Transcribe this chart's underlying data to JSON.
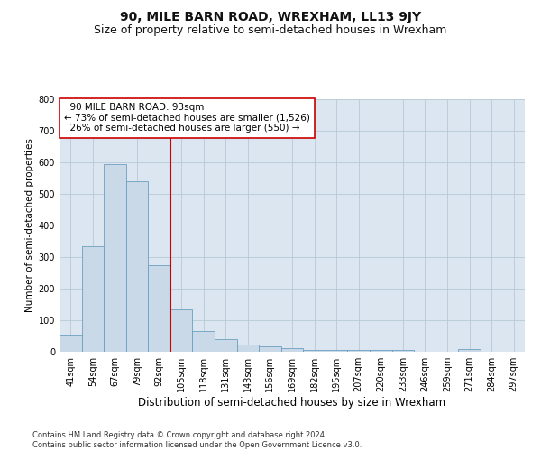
{
  "title": "90, MILE BARN ROAD, WREXHAM, LL13 9JY",
  "subtitle": "Size of property relative to semi-detached houses in Wrexham",
  "xlabel": "Distribution of semi-detached houses by size in Wrexham",
  "ylabel": "Number of semi-detached properties",
  "categories": [
    "41sqm",
    "54sqm",
    "67sqm",
    "79sqm",
    "92sqm",
    "105sqm",
    "118sqm",
    "131sqm",
    "143sqm",
    "156sqm",
    "169sqm",
    "182sqm",
    "195sqm",
    "207sqm",
    "220sqm",
    "233sqm",
    "246sqm",
    "259sqm",
    "271sqm",
    "284sqm",
    "297sqm"
  ],
  "values": [
    55,
    335,
    595,
    540,
    275,
    135,
    65,
    40,
    22,
    17,
    12,
    7,
    5,
    7,
    5,
    5,
    0,
    0,
    8,
    0,
    0
  ],
  "bar_color": "#c9d9e8",
  "bar_edge_color": "#6a9fc0",
  "vline_color": "#cc0000",
  "grid_color": "#b8cad8",
  "background_color": "#dce6f0",
  "ylim": [
    0,
    800
  ],
  "yticks": [
    0,
    100,
    200,
    300,
    400,
    500,
    600,
    700,
    800
  ],
  "subject_line_label": "90 MILE BARN ROAD: 93sqm",
  "pct_smaller": 73,
  "n_smaller": 1526,
  "pct_larger": 26,
  "n_larger": 550,
  "annotation_box_color": "#ffffff",
  "annotation_box_edge": "#cc0000",
  "footnote": "Contains HM Land Registry data © Crown copyright and database right 2024.\nContains public sector information licensed under the Open Government Licence v3.0.",
  "title_fontsize": 10,
  "subtitle_fontsize": 9,
  "xlabel_fontsize": 8.5,
  "ylabel_fontsize": 7.5,
  "tick_fontsize": 7,
  "annot_fontsize": 7.5,
  "footnote_fontsize": 6
}
